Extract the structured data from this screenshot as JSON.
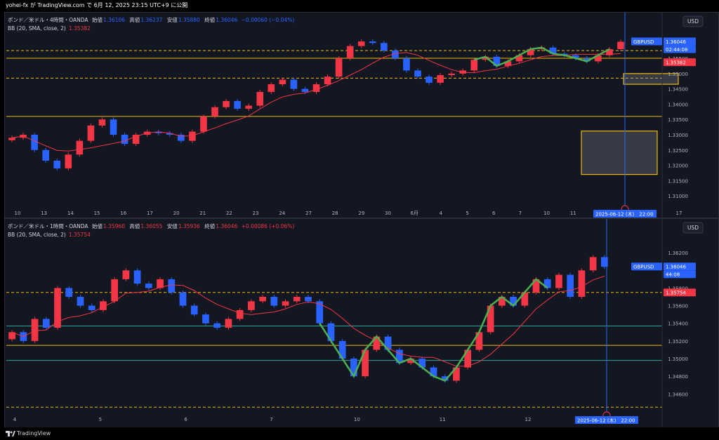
{
  "header": {
    "published": "yohei-fx が TradingView.com で 6月 12, 2025 23:15 UTC+9 に公開"
  },
  "footer": {
    "brand": "TradingView"
  },
  "colors": {
    "up": "#f23645",
    "down": "#2962ff",
    "bb": "#f23645",
    "hline_yellow": "#f0b90b",
    "hline_teal": "#26a69a",
    "wave": "#4caf50"
  },
  "panes": [
    {
      "legend": {
        "title": "ポンド／米ドル・4時間・OANDA",
        "o_label": "始値",
        "o_val": "1.36106",
        "h_label": "高値",
        "h_val": "1.36237",
        "l_label": "安値",
        "l_val": "1.35880",
        "c_label": "終値",
        "c_val": "1.36046",
        "chg": "−0.00060 (−0.04%)"
      },
      "bb": {
        "label": "BB (20, SMA, close, 2)",
        "val": "1.35382"
      },
      "currency": "USD",
      "symbol": "GBPUSD",
      "price_tag": "1.36046",
      "countdown": "02:44:08",
      "bb_tag": "1.35382",
      "crosshair_label": "2025-06-12 (木)　22:00",
      "y_labels": [
        "1.35500",
        "1.35000",
        "1.34500",
        "1.34000",
        "1.33500",
        "1.33000",
        "1.32500",
        "1.32000",
        "1.31500",
        "1.31000"
      ],
      "x_labels": [
        "10",
        "13",
        "14",
        "15",
        "16",
        "17",
        "20",
        "21",
        "22",
        "23",
        "24",
        "27",
        "28",
        "29",
        "30",
        "6月",
        "4",
        "5",
        "6",
        "7",
        "10",
        "11",
        "12",
        "13",
        "16",
        "17"
      ]
    },
    {
      "legend": {
        "title": "ポンド／米ドル・1時間・OANDA",
        "o_label": "始値",
        "o_val": "1.35960",
        "h_label": "高値",
        "h_val": "1.36055",
        "l_label": "安値",
        "l_val": "1.35936",
        "c_label": "終値",
        "c_val": "1.36046",
        "chg": "+0.00086 (+0.06%)"
      },
      "bb": {
        "label": "BB (20, SMA, close, 2)",
        "val": "1.35754"
      },
      "currency": "USD",
      "symbol": "GBPUSD",
      "price_tag": "1.36046",
      "countdown": "44:08",
      "bb_tag": "1.35754",
      "crosshair_label": "2025-06-12 (木)　22:00",
      "y_labels": [
        "1.36200",
        "1.35800",
        "1.35600",
        "1.35400",
        "1.35200",
        "1.35000",
        "1.34800",
        "1.34600"
      ],
      "x_labels": [
        "4",
        "5",
        "6",
        "7",
        "10",
        "11",
        "12"
      ]
    }
  ],
  "chart_data": [
    {
      "type": "candlestick",
      "title": "ポンド／米ドル・4時間・OANDA",
      "ylim": [
        1.3075,
        1.3635
      ],
      "grid": false,
      "close_series": [
        1.329,
        1.33,
        1.325,
        1.3215,
        1.319,
        1.3235,
        1.328,
        1.333,
        1.335,
        1.33,
        1.327,
        1.33,
        1.331,
        1.3305,
        1.33,
        1.328,
        1.331,
        1.336,
        1.339,
        1.341,
        1.3385,
        1.3395,
        1.344,
        1.3465,
        1.348,
        1.345,
        1.344,
        1.3465,
        1.349,
        1.355,
        1.359,
        1.3605,
        1.36,
        1.3575,
        1.355,
        1.351,
        1.349,
        1.347,
        1.3495,
        1.35,
        1.351,
        1.3545,
        1.3555,
        1.3525,
        1.354,
        1.356,
        1.358,
        1.3585,
        1.3565,
        1.356,
        1.355,
        1.354,
        1.356,
        1.358,
        1.3604
      ],
      "horizontal_lines": [
        1.3575,
        1.355,
        1.3485,
        1.336
      ],
      "boxes": [
        {
          "y_top": 1.35,
          "y_bottom": 1.3465
        },
        {
          "y_top": 1.3312,
          "y_bottom": 1.317
        }
      ]
    },
    {
      "type": "candlestick",
      "title": "ポンド／米ドル・1時間・OANDA",
      "ylim": [
        1.3442,
        1.3636
      ],
      "grid": false,
      "close_series": [
        1.353,
        1.352,
        1.3545,
        1.3535,
        1.358,
        1.357,
        1.356,
        1.3555,
        1.3565,
        1.359,
        1.36,
        1.3585,
        1.358,
        1.359,
        1.3575,
        1.356,
        1.355,
        1.354,
        1.3535,
        1.3545,
        1.3555,
        1.3565,
        1.357,
        1.356,
        1.3565,
        1.357,
        1.3565,
        1.354,
        1.352,
        1.35,
        1.348,
        1.351,
        1.3525,
        1.351,
        1.3495,
        1.35,
        1.349,
        1.348,
        1.3475,
        1.349,
        1.351,
        1.353,
        1.356,
        1.357,
        1.356,
        1.3575,
        1.359,
        1.358,
        1.3595,
        1.357,
        1.36,
        1.3615,
        1.3604
      ],
      "horizontal_lines": [
        1.3575,
        1.3537,
        1.3515,
        1.3498,
        1.3445
      ]
    }
  ]
}
